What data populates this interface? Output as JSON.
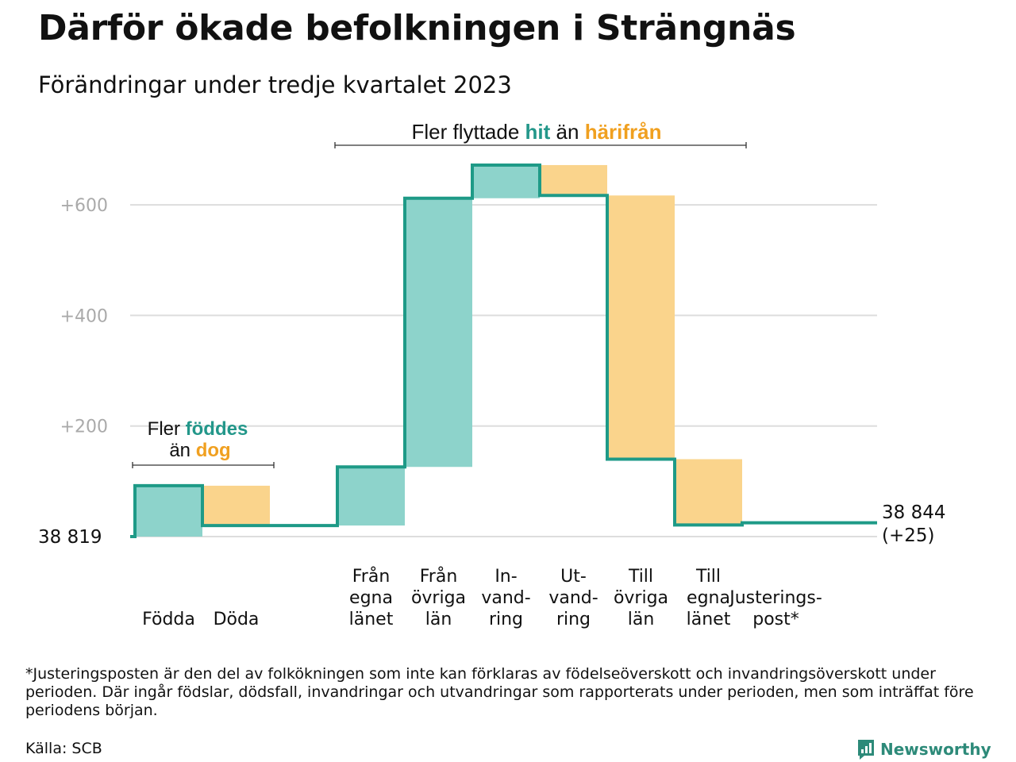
{
  "title": "Därför ökade befolkningen i Strängnäs",
  "subtitle": "Förändringar under tredje kvartalet 2023",
  "footnote": "*Justeringsposten är den del av folkökningen som inte kan förklaras av födelseöverskott och invandringsöverskott under perioden. Där ingår födslar, dödsfall, invandringar och utvandringar som rapporterats under perioden, men som inträffat före periodens början.",
  "source": "Källa: SCB",
  "brand": "Newsworthy",
  "colors": {
    "inflow_fill": "#8dd3cb",
    "outflow_fill": "#fad48c",
    "line": "#1e9a87",
    "accent_text": "#23978a",
    "outflow_text": "#f0a020",
    "grid": "#dddddd",
    "tick_text": "#aaaaaa"
  },
  "chart_data": {
    "type": "waterfall",
    "y_axis": {
      "ticks": [
        "+200",
        "+400",
        "+600"
      ],
      "tick_values": [
        200,
        400,
        600
      ],
      "ylim": [
        0,
        700
      ],
      "grid": true
    },
    "start": {
      "label": "38  819",
      "value": 0
    },
    "end": {
      "label": "38 844",
      "change": "(+25)",
      "value": 25
    },
    "steps": [
      {
        "category": [
          "Födda"
        ],
        "kind": "in",
        "from": 0,
        "to": 92
      },
      {
        "category": [
          "Döda"
        ],
        "kind": "out",
        "from": 92,
        "to": 20
      },
      {
        "category": [],
        "kind": "gap",
        "from": 20,
        "to": 20
      },
      {
        "category": [
          "Från",
          "egna",
          "länet"
        ],
        "kind": "in",
        "from": 20,
        "to": 126
      },
      {
        "category": [
          "Från",
          "övriga",
          "län"
        ],
        "kind": "in",
        "from": 126,
        "to": 612
      },
      {
        "category": [
          "In-",
          "vand-",
          "ring"
        ],
        "kind": "in",
        "from": 612,
        "to": 672
      },
      {
        "category": [
          "Ut-",
          "vand-",
          "ring"
        ],
        "kind": "out",
        "from": 672,
        "to": 617
      },
      {
        "category": [
          "Till",
          "övriga",
          "län"
        ],
        "kind": "out",
        "from": 617,
        "to": 140
      },
      {
        "category": [
          "Till",
          "egna",
          "länet"
        ],
        "kind": "out",
        "from": 140,
        "to": 21
      },
      {
        "category": [
          "Justerings-",
          "post*"
        ],
        "kind": "adjust",
        "from": 21,
        "to": 25
      }
    ],
    "annotations": {
      "births": {
        "line1_plain": "Fler",
        "line1_accent": "föddes",
        "line2_plain": "än",
        "line2_accent": "dog"
      },
      "migration": {
        "plain1": "Fler flyttade",
        "accent1": "hit",
        "plain2": "än",
        "accent2": "härifrån"
      }
    }
  }
}
